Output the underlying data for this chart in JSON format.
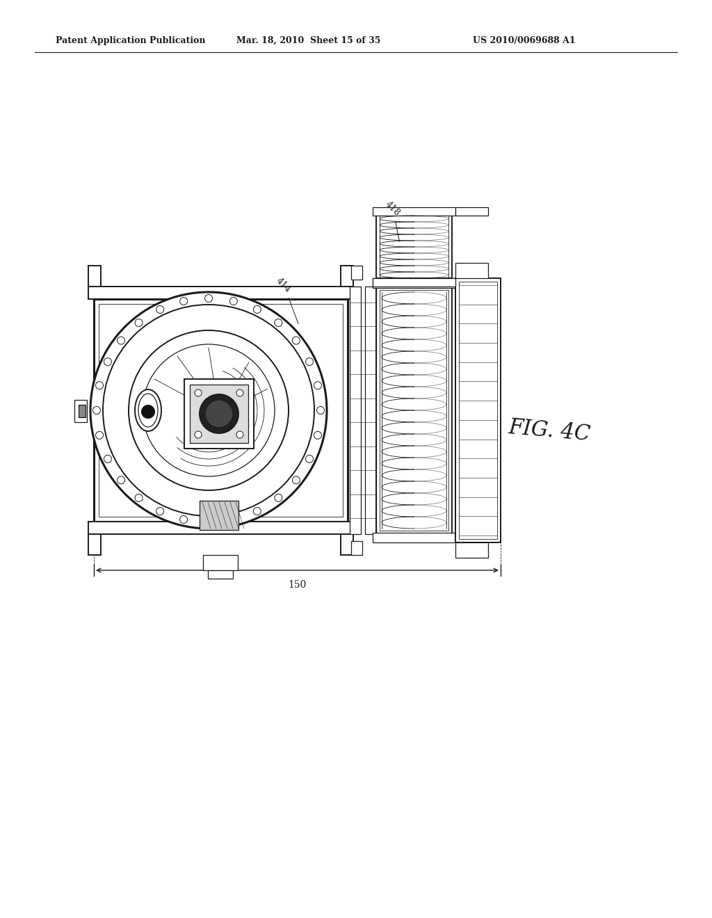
{
  "bg_color": "#ffffff",
  "line_color": "#1a1a1a",
  "header_left": "Patent Application Publication",
  "header_mid": "Mar. 18, 2010  Sheet 15 of 35",
  "header_right": "US 2010/0069688 A1",
  "fig_label": "FIG. 4C"
}
